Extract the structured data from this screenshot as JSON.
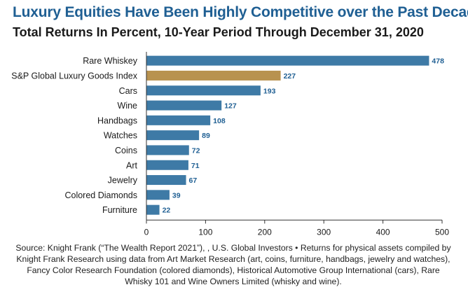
{
  "header": {
    "title": "Luxury Equities Have Been Highly Competitive over the Past Decade",
    "subtitle": "Total Returns In Percent, 10-Year Period Through December 31, 2020"
  },
  "chart_data": {
    "type": "bar",
    "orientation": "horizontal",
    "categories": [
      "Rare Whiskey",
      "S&P Global Luxury Goods Index",
      "Cars",
      "Wine",
      "Handbags",
      "Watches",
      "Coins",
      "Art",
      "Jewelry",
      "Colored Diamonds",
      "Furniture"
    ],
    "values": [
      478,
      227,
      193,
      127,
      108,
      89,
      72,
      71,
      67,
      39,
      22
    ],
    "bar_colors": [
      "#3e7aa6",
      "#b8924f",
      "#3e7aa6",
      "#3e7aa6",
      "#3e7aa6",
      "#3e7aa6",
      "#3e7aa6",
      "#3e7aa6",
      "#3e7aa6",
      "#3e7aa6",
      "#3e7aa6"
    ],
    "value_label_color": "#1f5f93",
    "xlim": [
      0,
      500
    ],
    "xticks": [
      0,
      100,
      200,
      300,
      400,
      500
    ],
    "grid": false
  },
  "footnote": "Source: Knight Frank (“The Wealth Report 2021”), , U.S. Global Investors • Returns for physical assets compiled by Knight Frank Research using data from Art Market Research (art, coins, furniture, handbags, jewelry and watches), Fancy Color Research Foundation (colored diamonds), Historical Automotive Group International (cars), Rare Whisky 101 and Wine Owners Limited (whisky and wine)."
}
